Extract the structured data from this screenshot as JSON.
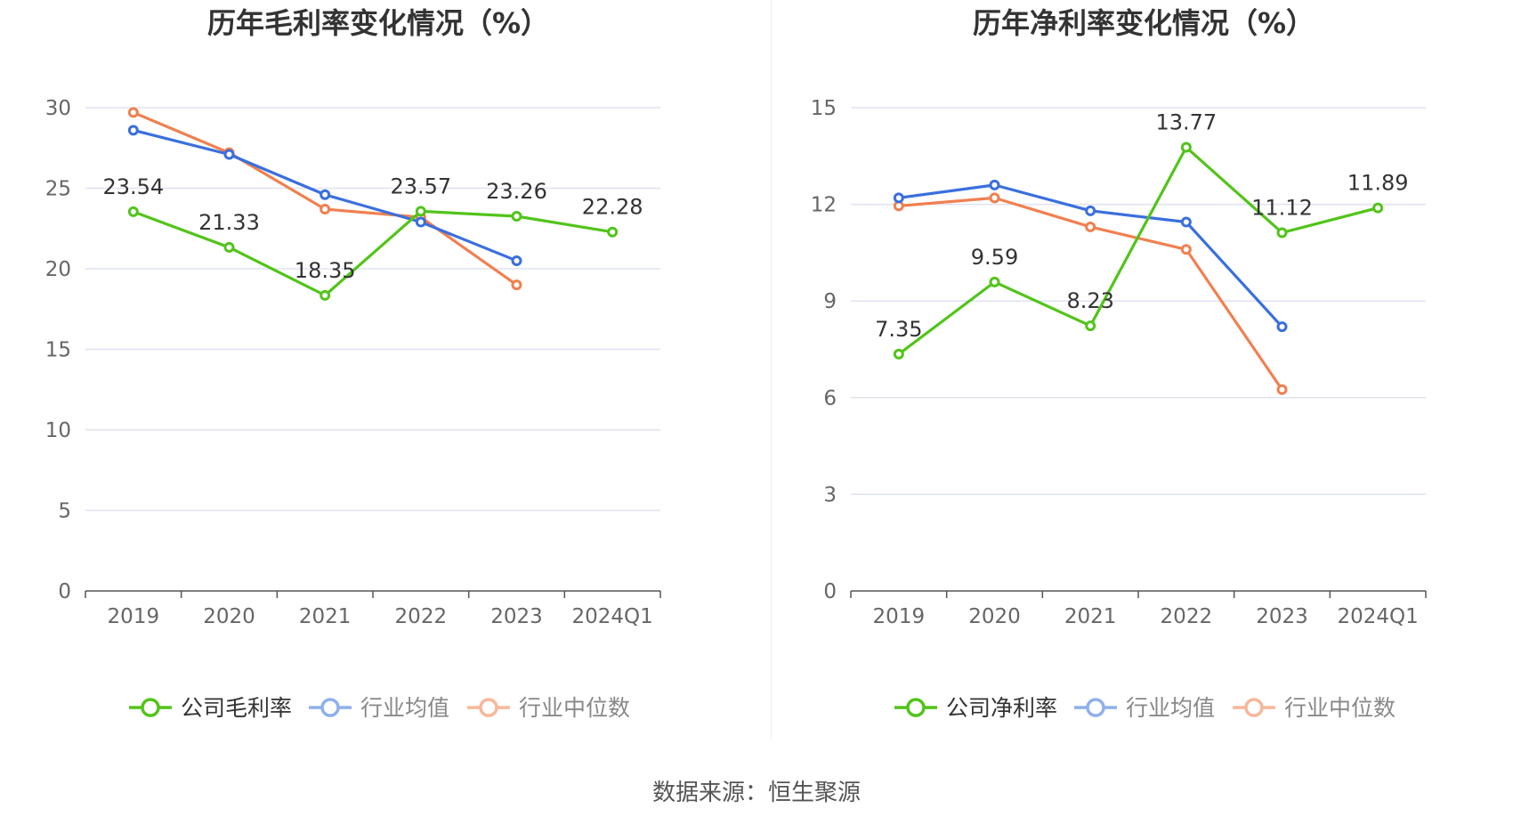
{
  "source_label": "数据来源：恒生聚源",
  "colors": {
    "company": "#52c41a",
    "avg": "#3a6fdd",
    "median": "#f08050",
    "grid": "#dfe3f0",
    "axis": "#666666",
    "text": "#333333"
  },
  "chart_data": [
    {
      "type": "line",
      "title": "历年毛利率变化情况（%）",
      "categories": [
        "2019",
        "2020",
        "2021",
        "2022",
        "2023",
        "2024Q1"
      ],
      "yticks": [
        0,
        5,
        10,
        15,
        20,
        25,
        30
      ],
      "ylim": [
        0,
        30
      ],
      "grid": true,
      "legend_position": "bottom-center",
      "series": [
        {
          "name": "公司毛利率",
          "color": "#52c41a",
          "values": [
            23.54,
            21.33,
            18.35,
            23.57,
            23.26,
            22.28
          ],
          "labels": [
            "23.54",
            "21.33",
            "18.35",
            "23.57",
            "23.26",
            "22.28"
          ]
        },
        {
          "name": "行业均值",
          "color": "#3a6fdd",
          "values": [
            28.6,
            27.1,
            24.6,
            22.9,
            20.5,
            null
          ]
        },
        {
          "name": "行业中位数",
          "color": "#f08050",
          "values": [
            29.7,
            27.2,
            23.7,
            23.2,
            19.0,
            null
          ]
        }
      ]
    },
    {
      "type": "line",
      "title": "历年净利率变化情况（%）",
      "categories": [
        "2019",
        "2020",
        "2021",
        "2022",
        "2023",
        "2024Q1"
      ],
      "yticks": [
        0,
        3,
        6,
        9,
        12,
        15
      ],
      "ylim": [
        0,
        15
      ],
      "grid": true,
      "legend_position": "bottom-center",
      "series": [
        {
          "name": "公司净利率",
          "color": "#52c41a",
          "values": [
            7.35,
            9.59,
            8.23,
            13.77,
            11.12,
            11.89
          ],
          "labels": [
            "7.35",
            "9.59",
            "8.23",
            "13.77",
            "11.12",
            "11.89"
          ]
        },
        {
          "name": "行业均值",
          "color": "#3a6fdd",
          "values": [
            12.2,
            12.6,
            11.8,
            11.45,
            8.2,
            null
          ]
        },
        {
          "name": "行业中位数",
          "color": "#f08050",
          "values": [
            11.95,
            12.2,
            11.3,
            10.6,
            6.25,
            null
          ]
        }
      ]
    }
  ]
}
